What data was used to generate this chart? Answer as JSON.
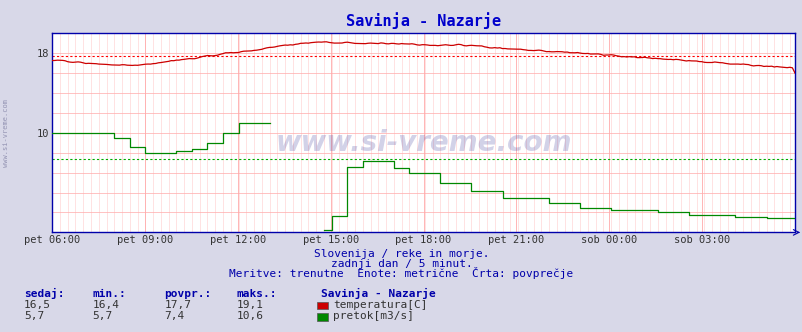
{
  "title": "Savinja - Nazarje",
  "title_color": "#0000cc",
  "bg_color": "#d8d8e8",
  "plot_bg_color": "#ffffff",
  "temp_color": "#cc0000",
  "flow_color": "#008800",
  "avg_temp_color": "#ff0000",
  "avg_flow_color": "#00aa00",
  "border_color": "#0000aa",
  "grid_major_color": "#ffaaaa",
  "grid_minor_color": "#ffcccc",
  "ylim": [
    0,
    20
  ],
  "avg_temp": 17.7,
  "avg_flow": 7.4,
  "xlabel_times": [
    "pet 06:00",
    "pet 09:00",
    "pet 12:00",
    "pet 15:00",
    "pet 18:00",
    "pet 21:00",
    "sob 00:00",
    "sob 03:00"
  ],
  "footer_line1": "Slovenija / reke in morje.",
  "footer_line2": "zadnji dan / 5 minut.",
  "footer_line3": "Meritve: trenutne  Enote: metrične  Črta: povprečje",
  "footer_color": "#0000aa",
  "table_headers": [
    "sedaj:",
    "min.:",
    "povpr.:",
    "maks.:"
  ],
  "table_header_color": "#0000aa",
  "station_name": "Savinja - Nazarje",
  "temp_row": [
    "16,5",
    "16,4",
    "17,7",
    "19,1"
  ],
  "flow_row": [
    "5,7",
    "5,7",
    "7,4",
    "10,6"
  ],
  "label_temp": "temperatura[C]",
  "label_flow": "pretok[m3/s]",
  "watermark_text": "www.si-vreme.com",
  "watermark_color": "#333399",
  "side_text": "www.si-vreme.com",
  "side_color": "#8888aa"
}
